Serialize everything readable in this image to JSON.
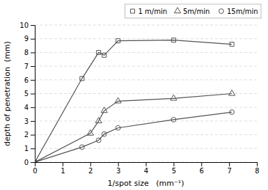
{
  "chart_data": {
    "type": "line",
    "xlabel": "1/spot size   (mm⁻¹)",
    "ylabel": "depth of penetration  (mm)",
    "series": [
      {
        "name": "1 m/min",
        "color": "#505050",
        "marker": "square",
        "x": [
          0,
          1.7,
          2.3,
          2.5,
          3.0,
          5.0,
          7.1
        ],
        "values": [
          0,
          6.1,
          8.0,
          7.8,
          8.85,
          8.9,
          8.6
        ]
      },
      {
        "name": "5m/min",
        "color": "#505050",
        "marker": "triangle",
        "x": [
          0,
          2.0,
          2.3,
          2.5,
          3.0,
          5.0,
          7.1
        ],
        "values": [
          0,
          2.1,
          3.0,
          3.75,
          4.45,
          4.65,
          5.0
        ]
      },
      {
        "name": "15m/min",
        "color": "#505050",
        "marker": "circle",
        "x": [
          0,
          1.7,
          2.3,
          2.5,
          3.0,
          5.0,
          7.1
        ],
        "values": [
          0,
          1.1,
          1.6,
          2.05,
          2.5,
          3.1,
          3.65
        ]
      }
    ],
    "xlim": [
      0,
      8
    ],
    "ylim": [
      0,
      10
    ],
    "xticks": [
      0,
      1,
      2,
      3,
      4,
      5,
      6,
      7,
      8
    ],
    "yticks": [
      0,
      1,
      2,
      3,
      4,
      5,
      6,
      7,
      8,
      9,
      10
    ],
    "grid": true,
    "legend": "top-right"
  }
}
